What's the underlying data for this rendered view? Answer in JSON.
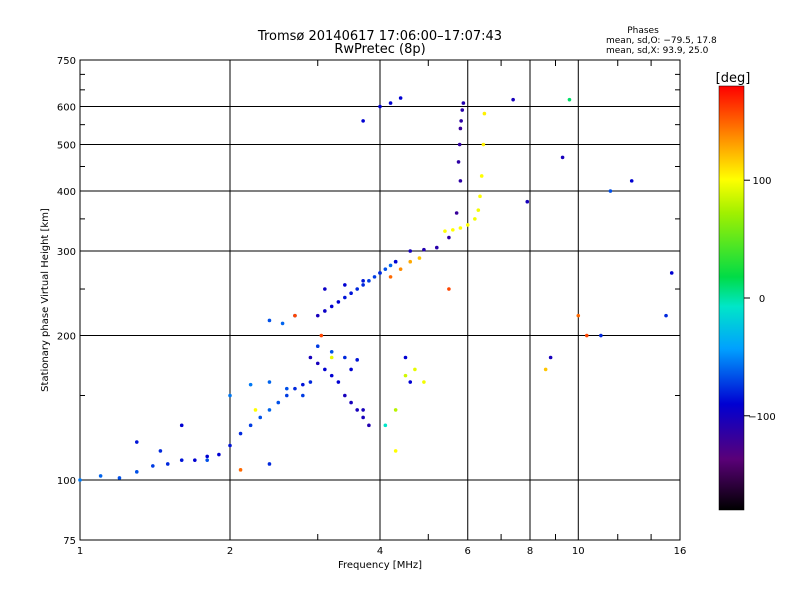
{
  "chart_data": {
    "type": "scatter",
    "title": "Tromsø 20140617 17:06:00–17:07:43",
    "subtitle": "RwPretec (8p)",
    "xlabel": "Frequency [MHz]",
    "ylabel": "Stationary phase Virtual Height [km]",
    "xscale": "log",
    "yscale": "log",
    "xlim": [
      1,
      16
    ],
    "ylim": [
      75,
      750
    ],
    "x_ticks": [
      1,
      2,
      4,
      6,
      8,
      10,
      16
    ],
    "y_ticks": [
      75,
      100,
      200,
      300,
      400,
      500,
      600,
      750
    ],
    "grid": true,
    "legend": {
      "heading": "Phases",
      "lines": [
        "mean, sd,O: −79.5, 17.8",
        "mean, sd,X:  93.9, 25.0"
      ]
    },
    "colorbar": {
      "label": "[deg]",
      "min": -180,
      "max": 180,
      "ticks": [
        100,
        0,
        -100
      ]
    },
    "series": [
      {
        "x": [
          1.0,
          1.1,
          1.2,
          1.3,
          1.4,
          1.5,
          1.6,
          1.7,
          1.8,
          1.9
        ],
        "y": [
          100,
          102,
          101,
          104,
          107,
          108,
          110,
          110,
          112,
          113
        ],
        "phase": [
          -70,
          -75,
          -80,
          -80,
          -85,
          -90,
          -95,
          -100,
          -100,
          -100
        ]
      },
      {
        "x": [
          2.0,
          2.1,
          2.2,
          2.3,
          2.4,
          2.5,
          2.6,
          2.7,
          2.8,
          2.9
        ],
        "y": [
          118,
          125,
          130,
          135,
          140,
          145,
          150,
          155,
          158,
          160
        ],
        "phase": [
          -95,
          -90,
          -85,
          -80,
          -75,
          -80,
          -85,
          -90,
          -95,
          -90
        ]
      },
      {
        "x": [
          2.0,
          2.2,
          2.4,
          2.6,
          2.8
        ],
        "y": [
          150,
          158,
          160,
          155,
          150
        ],
        "phase": [
          -70,
          -70,
          -75,
          -80,
          -85
        ]
      },
      {
        "x": [
          2.4,
          2.55,
          2.7
        ],
        "y": [
          215,
          212,
          220
        ],
        "phase": [
          -80,
          -75,
          -85
        ]
      },
      {
        "x": [
          2.9,
          3.0,
          3.1,
          3.2,
          3.3,
          3.4,
          3.5,
          3.6,
          3.7,
          3.8
        ],
        "y": [
          180,
          175,
          170,
          165,
          160,
          150,
          145,
          140,
          135,
          130
        ],
        "phase": [
          -110,
          -110,
          -100,
          -100,
          -100,
          -110,
          -110,
          -110,
          -110,
          -115
        ]
      },
      {
        "x": [
          3.0,
          3.2,
          3.4,
          3.6
        ],
        "y": [
          190,
          185,
          180,
          178
        ],
        "phase": [
          -85,
          -80,
          -90,
          -95
        ]
      },
      {
        "x": [
          3.0,
          3.1,
          3.2,
          3.3,
          3.4,
          3.5,
          3.6,
          3.7,
          3.8,
          3.9,
          4.0,
          4.1,
          4.2,
          4.3
        ],
        "y": [
          220,
          225,
          230,
          235,
          240,
          245,
          250,
          255,
          260,
          265,
          270,
          275,
          280,
          285
        ],
        "phase": [
          -110,
          -105,
          -100,
          -100,
          -95,
          -95,
          -90,
          -90,
          -85,
          -85,
          -80,
          -80,
          -75,
          -75
        ]
      },
      {
        "x": [
          3.1,
          3.4,
          3.7,
          4.0,
          4.3,
          4.6,
          4.9,
          5.2,
          5.5,
          5.7,
          5.8
        ],
        "y": [
          250,
          255,
          260,
          270,
          285,
          300,
          302,
          305,
          320,
          360,
          420
        ],
        "phase": [
          -105,
          -100,
          -95,
          -90,
          -100,
          -110,
          -115,
          -118,
          -120,
          -125,
          -120
        ]
      },
      {
        "x": [
          5.75,
          5.78,
          5.8,
          5.82,
          5.85,
          5.88
        ],
        "y": [
          460,
          500,
          540,
          560,
          590,
          610
        ],
        "phase": [
          -120,
          -122,
          -125,
          -120,
          -118,
          -115
        ]
      },
      {
        "x": [
          4.2,
          4.4,
          4.6,
          4.8
        ],
        "y": [
          265,
          275,
          285,
          290
        ],
        "phase": [
          150,
          140,
          130,
          120
        ]
      },
      {
        "x": [
          5.4,
          5.6,
          5.8,
          6.0,
          6.2,
          6.3,
          6.35,
          6.4,
          6.45,
          6.48
        ],
        "y": [
          330,
          332,
          335,
          340,
          350,
          365,
          390,
          430,
          500,
          580
        ],
        "phase": [
          100,
          100,
          100,
          100,
          95,
          95,
          100,
          100,
          105,
          105
        ]
      },
      {
        "x": [
          4.3,
          4.5,
          4.7,
          4.9
        ],
        "y": [
          140,
          165,
          170,
          160
        ],
        "phase": [
          70,
          80,
          90,
          95
        ]
      },
      {
        "x": [
          3.7,
          4.0,
          4.2,
          4.4
        ],
        "y": [
          560,
          600,
          610,
          625
        ],
        "phase": [
          -100,
          -100,
          -100,
          -100
        ]
      },
      {
        "x": [
          1.3,
          1.45,
          1.6,
          1.8,
          2.1,
          2.25,
          2.4,
          2.7,
          3.05,
          3.2,
          3.5,
          3.7,
          4.1,
          4.3,
          4.5,
          4.6,
          5.5,
          7.4,
          7.9,
          8.6,
          8.8,
          9.3,
          9.6,
          10.0,
          10.4,
          11.1,
          11.6,
          12.8,
          15.0,
          15.4
        ],
        "y": [
          120,
          115,
          130,
          110,
          105,
          140,
          108,
          220,
          200,
          180,
          170,
          140,
          130,
          115,
          180,
          160,
          250,
          620,
          380,
          170,
          180,
          470,
          620,
          220,
          200,
          200,
          400,
          420,
          220,
          270
        ],
        "phase": [
          -95,
          -90,
          -100,
          -80,
          150,
          100,
          -90,
          160,
          160,
          90,
          -100,
          -110,
          -20,
          100,
          -100,
          -100,
          160,
          -110,
          -110,
          120,
          -110,
          -110,
          10,
          150,
          160,
          -90,
          -80,
          -100,
          -90,
          -100
        ]
      }
    ]
  }
}
